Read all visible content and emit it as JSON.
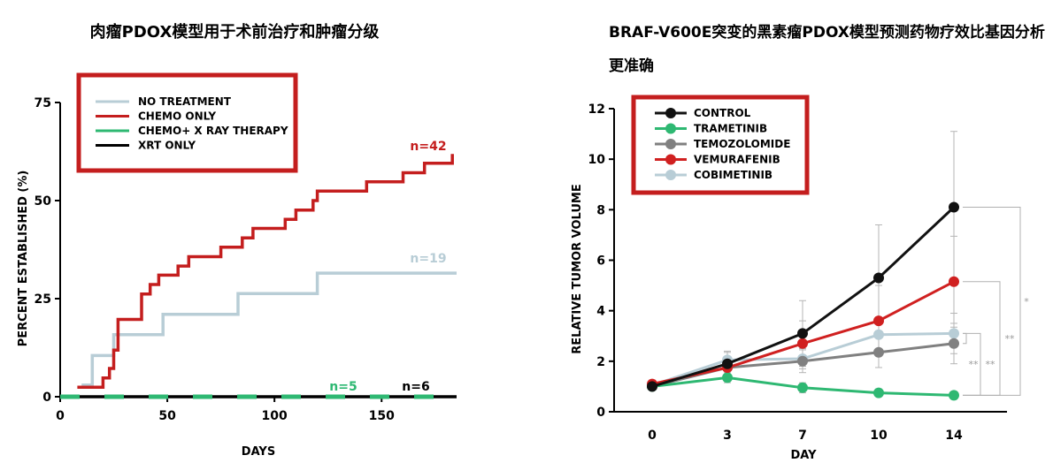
{
  "chart_data": [
    {
      "type": "line",
      "title": "肉瘤PDOX模型用于术前治疗和肿瘤分级",
      "xlabel": "DAYS",
      "ylabel": "PERCENT ESTABLISHED (%)",
      "xlim": [
        0,
        185
      ],
      "ylim": [
        0,
        75
      ],
      "xticks": [
        "0",
        "50",
        "100",
        "150"
      ],
      "yticks": [
        "0",
        "25",
        "50",
        "75"
      ],
      "step": true,
      "legend_position": "top-left",
      "series": [
        {
          "name": "NO TREATMENT",
          "color": "#b8cdd6",
          "n_label": "n=19",
          "x": [
            10,
            15,
            15,
            25,
            25,
            48,
            48,
            83,
            83,
            120,
            120,
            185
          ],
          "y": [
            3,
            3,
            10.5,
            10.5,
            15.8,
            15.8,
            21,
            21,
            26.3,
            26.3,
            31.5,
            31.5
          ]
        },
        {
          "name": "CHEMO ONLY",
          "color": "#c41e1e",
          "n_label": "n=42",
          "x": [
            8,
            20,
            20,
            23,
            23,
            25,
            25,
            27,
            27,
            38,
            38,
            42,
            42,
            46,
            46,
            55,
            55,
            60,
            60,
            65,
            65,
            75,
            75,
            85,
            85,
            90,
            90,
            105,
            105,
            110,
            110,
            118,
            118,
            120,
            120,
            128,
            128,
            143,
            143,
            160,
            160,
            170,
            170,
            183,
            183
          ],
          "y": [
            2.4,
            2.4,
            4.8,
            4.8,
            7.2,
            7.2,
            11.9,
            11.9,
            19.7,
            19.7,
            26.2,
            26.2,
            28.6,
            28.6,
            31,
            31,
            33.3,
            33.3,
            35.7,
            35.7,
            35.7,
            35.7,
            38.1,
            38.1,
            40.5,
            40.5,
            42.9,
            42.9,
            45.2,
            45.2,
            47.6,
            47.6,
            50,
            50,
            52.4,
            52.4,
            52.4,
            52.4,
            54.8,
            54.8,
            57.1,
            57.1,
            59.5,
            59.5,
            61.9
          ]
        },
        {
          "name": "CHEMO+ X RAY THERAPY",
          "color": "#2eb872",
          "n_label": "n=5",
          "x": [
            0,
            185
          ],
          "y": [
            0,
            0
          ],
          "dashed": true
        },
        {
          "name": "XRT ONLY",
          "color": "#000000",
          "n_label": "n=6",
          "x": [
            0,
            185
          ],
          "y": [
            0,
            0
          ]
        }
      ]
    },
    {
      "type": "line",
      "title": "BRAF-V600E突变的黑素瘤PDOX模型预测药物疗效比基因分析更准确",
      "xlabel": "DAY",
      "ylabel": "RELATIVE TUMOR VOLUME",
      "categories": [
        "0",
        "3",
        "7",
        "10",
        "14"
      ],
      "ylim": [
        0,
        12
      ],
      "yticks": [
        "0",
        "2",
        "4",
        "6",
        "8",
        "10",
        "12"
      ],
      "legend_position": "top-left",
      "series": [
        {
          "name": "CONTROL",
          "color": "#111111",
          "values": [
            1.0,
            1.9,
            3.1,
            5.3,
            8.1
          ],
          "err": [
            0.1,
            0.5,
            1.3,
            2.1,
            3.0
          ]
        },
        {
          "name": "TRAMETINIB",
          "color": "#2eb872",
          "values": [
            1.0,
            1.35,
            0.95,
            0.75,
            0.65
          ],
          "err": [
            0.1,
            0.2,
            0.2,
            0.15,
            0.15
          ]
        },
        {
          "name": "TEMOZOLOMIDE",
          "color": "#808080",
          "values": [
            1.0,
            1.75,
            2.0,
            2.35,
            2.7
          ],
          "err": [
            0.1,
            0.25,
            0.45,
            0.6,
            0.8
          ]
        },
        {
          "name": "VEMURAFENIB",
          "color": "#d02020",
          "values": [
            1.1,
            1.75,
            2.7,
            3.6,
            5.15
          ],
          "err": [
            0.1,
            0.3,
            0.9,
            1.4,
            1.8
          ]
        },
        {
          "name": "COBIMETINIB",
          "color": "#b8cdd6",
          "values": [
            1.05,
            2.05,
            2.1,
            3.05,
            3.1
          ],
          "err": [
            0.1,
            0.3,
            0.4,
            0.6,
            0.8
          ]
        }
      ],
      "significance": [
        "*",
        "**",
        "**",
        "**"
      ]
    }
  ]
}
